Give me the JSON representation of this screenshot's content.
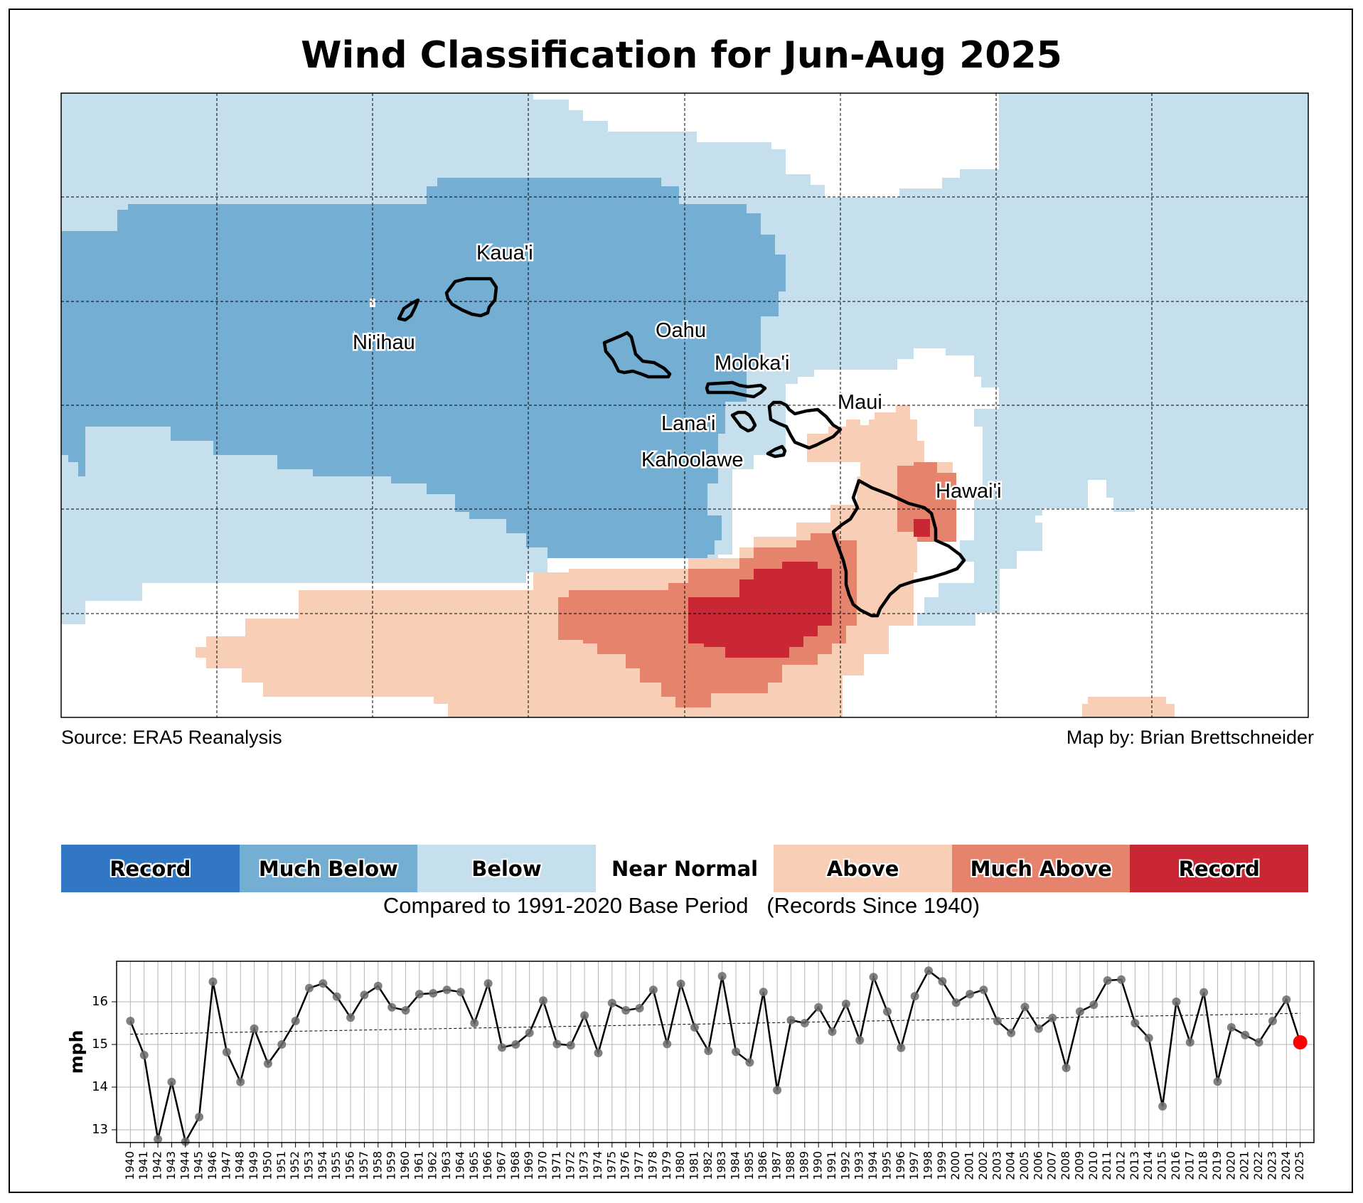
{
  "title": "Wind Classification for Jun-Aug 2025",
  "source_note": "Source: ERA5 Reanalysis",
  "credit_note": "Map by: Brian Brettschneider",
  "islands": [
    {
      "name": "Kaua'i"
    },
    {
      "name": "Ni'ihau"
    },
    {
      "name": "Oahu"
    },
    {
      "name": "Moloka'i"
    },
    {
      "name": "Maui"
    },
    {
      "name": "Lana'i"
    },
    {
      "name": "Kahoolawe"
    },
    {
      "name": "Hawai'i"
    }
  ],
  "legend": {
    "categories": [
      {
        "label": "Record",
        "color": "#3177c4"
      },
      {
        "label": "Much Below",
        "color": "#74afd3"
      },
      {
        "label": "Below",
        "color": "#c5dfec"
      },
      {
        "label": "Near Normal",
        "color": "#ffffff"
      },
      {
        "label": "Above",
        "color": "#f8cfb6"
      },
      {
        "label": "Much Above",
        "color": "#e6836c"
      },
      {
        "label": "Record",
        "color": "#c82733"
      }
    ],
    "base_period": "Compared to 1991-2020 Base Period   (Records Since 1940)"
  },
  "chart_data": {
    "type": "line",
    "ylabel": "mph",
    "ylim": [
      12.7,
      16.95
    ],
    "yticks": [
      13,
      14,
      15,
      16
    ],
    "xlim": [
      1939,
      2026
    ],
    "grid": true,
    "highlight_color": "#ff0000",
    "x": [
      1940,
      1941,
      1942,
      1943,
      1944,
      1945,
      1946,
      1947,
      1948,
      1949,
      1950,
      1951,
      1952,
      1953,
      1954,
      1955,
      1956,
      1957,
      1958,
      1959,
      1960,
      1961,
      1962,
      1963,
      1964,
      1965,
      1966,
      1967,
      1968,
      1969,
      1970,
      1971,
      1972,
      1973,
      1974,
      1975,
      1976,
      1977,
      1978,
      1979,
      1980,
      1981,
      1982,
      1983,
      1984,
      1985,
      1986,
      1987,
      1988,
      1989,
      1990,
      1991,
      1992,
      1993,
      1994,
      1995,
      1996,
      1997,
      1998,
      1999,
      2000,
      2001,
      2002,
      2003,
      2004,
      2005,
      2006,
      2007,
      2008,
      2009,
      2010,
      2011,
      2012,
      2013,
      2014,
      2015,
      2016,
      2017,
      2018,
      2019,
      2020,
      2021,
      2022,
      2023,
      2024,
      2025
    ],
    "values": [
      15.55,
      14.75,
      12.78,
      14.12,
      12.72,
      13.3,
      16.47,
      14.82,
      14.12,
      15.37,
      14.55,
      15.0,
      15.55,
      16.32,
      16.43,
      16.12,
      15.63,
      16.16,
      16.37,
      15.87,
      15.8,
      16.18,
      16.2,
      16.28,
      16.23,
      15.5,
      16.43,
      14.93,
      15.0,
      15.27,
      16.03,
      15.01,
      14.98,
      15.68,
      14.8,
      15.97,
      15.8,
      15.85,
      16.28,
      15.01,
      16.42,
      15.4,
      14.85,
      16.6,
      14.83,
      14.58,
      16.23,
      13.93,
      15.57,
      15.5,
      15.87,
      15.3,
      15.95,
      15.1,
      16.58,
      15.77,
      14.92,
      16.13,
      16.73,
      16.48,
      15.98,
      16.18,
      16.28,
      15.55,
      15.27,
      15.88,
      15.37,
      15.62,
      14.45,
      15.77,
      15.93,
      16.5,
      16.52,
      15.5,
      15.15,
      13.55,
      16.0,
      15.05,
      16.22,
      14.13,
      15.4,
      15.22,
      15.05,
      15.55,
      16.05,
      15.05
    ],
    "trend": {
      "start": [
        1940,
        15.24
      ],
      "end": [
        2025,
        15.73
      ]
    }
  }
}
